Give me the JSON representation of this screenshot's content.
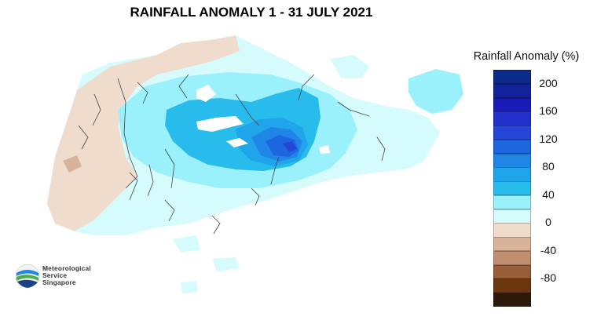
{
  "title": "RAINFALL ANOMALY 1 - 31 JULY 2021",
  "legend": {
    "title": "Rainfall Anomaly (%)",
    "ticks": [
      "200",
      "160",
      "120",
      "80",
      "40",
      "0",
      "-40",
      "-80"
    ],
    "bins": [
      {
        "range": ">200",
        "color": "#0b2a8a"
      },
      {
        "range": "180-200",
        "color": "#12229a"
      },
      {
        "range": "160-180",
        "color": "#1a1ab8"
      },
      {
        "range": "140-160",
        "color": "#2330cc"
      },
      {
        "range": "120-140",
        "color": "#2646d8"
      },
      {
        "range": "100-120",
        "color": "#1c66e0"
      },
      {
        "range": "80-100",
        "color": "#1f86e6"
      },
      {
        "range": "60-80",
        "color": "#20a4ea"
      },
      {
        "range": "40-60",
        "color": "#28bcec"
      },
      {
        "range": "20-40",
        "color": "#9af0fb"
      },
      {
        "range": "0-20",
        "color": "#d6fbfc"
      },
      {
        "range": "-20-0",
        "color": "#f0dccd"
      },
      {
        "range": "-40--20",
        "color": "#d8b39a"
      },
      {
        "range": "-60--40",
        "color": "#c08f70"
      },
      {
        "range": "-80--60",
        "color": "#985e37"
      },
      {
        "range": "-100--80",
        "color": "#6a3710"
      },
      {
        "range": "<-100",
        "color": "#2b1a0a"
      }
    ]
  },
  "logo": {
    "line1": "Meteorological",
    "line2": "Service",
    "line3": "Singapore"
  },
  "map_colors": {
    "land_base": "#d6fbfc",
    "light_cyan": "#9af0fb",
    "cyan": "#28bcec",
    "mid_blue": "#20a4ea",
    "blue": "#1f86e6",
    "deep_blue": "#1c66e0",
    "core": "#2646d8",
    "dry_light": "#f0dccd",
    "dry": "#d8b39a",
    "dry_dark": "#c08f70",
    "water": "#ffffff",
    "borders": "#444444"
  }
}
